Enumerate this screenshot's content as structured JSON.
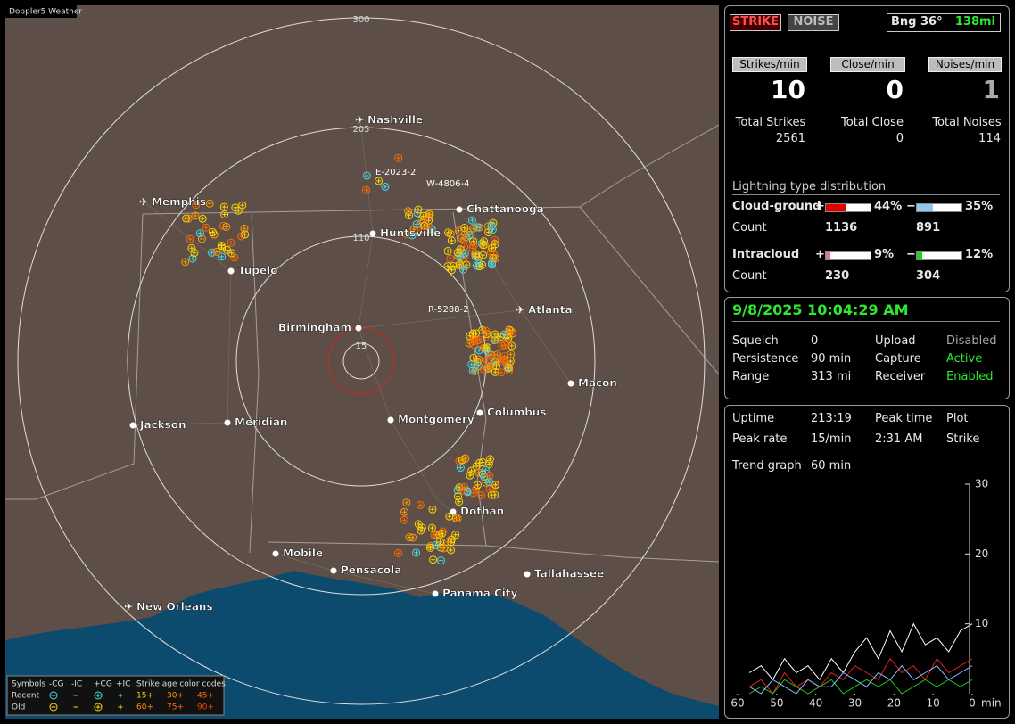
{
  "map": {
    "watermark": "Doppler5 Weather",
    "ring_labels": [
      300,
      205,
      110,
      15
    ],
    "cities": [
      {
        "name": "Nashville",
        "airport": true
      },
      {
        "name": "Memphis",
        "airport": true
      },
      {
        "name": "Tupelo",
        "airport": false
      },
      {
        "name": "Huntsville",
        "airport": false
      },
      {
        "name": "Chattanooga",
        "airport": false
      },
      {
        "name": "Atlanta",
        "airport": true
      },
      {
        "name": "Birmingham",
        "airport": false
      },
      {
        "name": "Macon",
        "airport": false
      },
      {
        "name": "Jackson",
        "airport": false
      },
      {
        "name": "Meridian",
        "airport": false
      },
      {
        "name": "Montgomery",
        "airport": false
      },
      {
        "name": "Columbus",
        "airport": false
      },
      {
        "name": "Dothan",
        "airport": false
      },
      {
        "name": "Mobile",
        "airport": false
      },
      {
        "name": "Pensacola",
        "airport": false
      },
      {
        "name": "Tallahassee",
        "airport": false
      },
      {
        "name": "Panama City",
        "airport": false
      },
      {
        "name": "New Orleans",
        "airport": true
      }
    ],
    "tracks": [
      "E-2023-2",
      "W-4806-4",
      "R-5288-2"
    ],
    "legend": {
      "symbols": "Symbols",
      "types": [
        "-CG",
        "-IC",
        "+CG",
        "+IC"
      ],
      "age_title": "Strike age color codes",
      "rows": [
        {
          "label": "Recent",
          "ages": [
            "15+",
            "30+",
            "45+"
          ]
        },
        {
          "label": "Old",
          "ages": [
            "60+",
            "75+",
            "90+"
          ]
        }
      ]
    }
  },
  "panel": {
    "modes": [
      "STRIKE",
      "NOISE"
    ],
    "bearing": "Bng 36°",
    "distance": "138mi",
    "rates": [
      {
        "label": "Strikes/min",
        "value": 10
      },
      {
        "label": "Close/min",
        "value": 0
      },
      {
        "label": "Noises/min",
        "value": 1
      }
    ],
    "totals": [
      {
        "label": "Total Strikes",
        "value": 2561
      },
      {
        "label": "Total Close",
        "value": 0
      },
      {
        "label": "Total Noises",
        "value": 114
      }
    ],
    "distribution": {
      "title": "Lightning type distribution",
      "count_label": "Count",
      "rows": [
        {
          "name": "Cloud-ground",
          "plus": {
            "sign": "+",
            "percent": {
              "value": 44,
              "label": "44%"
            },
            "count": 1136,
            "color": "#e00000"
          },
          "minus": {
            "sign": "−",
            "percent": {
              "value": 35,
              "label": "35%"
            },
            "count": 891,
            "color": "#8ec8f0"
          }
        },
        {
          "name": "Intracloud",
          "plus": {
            "sign": "+",
            "percent": {
              "value": 9,
              "label": "9%"
            },
            "count": 230,
            "color": "#e070b0"
          },
          "minus": {
            "sign": "−",
            "percent": {
              "value": 12,
              "label": "12%"
            },
            "count": 304,
            "color": "#20d020"
          }
        }
      ]
    },
    "datetime": "9/8/2025 10:04:29 AM",
    "status": [
      [
        "Squelch",
        "0",
        "Upload",
        "Disabled"
      ],
      [
        "Persistence",
        "90 min",
        "Capture",
        "Active"
      ],
      [
        "Range",
        "313 mi",
        "Receiver",
        "Enabled"
      ]
    ],
    "stats": [
      [
        "Uptime",
        "213:19",
        "Peak time",
        "Plot"
      ],
      [
        "Peak rate",
        "15/min",
        "2:31 AM",
        "Strike"
      ]
    ],
    "trend_label": "Trend graph",
    "trend_span": "60 min"
  },
  "trend": {
    "type": "line",
    "x_unit": "min",
    "x": [
      57,
      54,
      51,
      48,
      45,
      42,
      39,
      36,
      33,
      30,
      27,
      24,
      21,
      18,
      15,
      12,
      9,
      6,
      3,
      0
    ],
    "xlim": [
      60,
      0
    ],
    "xticks": [
      60,
      50,
      40,
      30,
      20,
      10,
      0
    ],
    "ylim": [
      0,
      30
    ],
    "yticks": [
      10,
      20,
      30
    ],
    "series": [
      {
        "color": "#ffffff",
        "values": [
          3,
          4,
          2,
          5,
          3,
          4,
          2,
          5,
          3,
          6,
          8,
          5,
          9,
          6,
          10,
          7,
          8,
          6,
          9,
          10
        ]
      },
      {
        "color": "#e02020",
        "values": [
          1,
          2,
          0,
          3,
          1,
          2,
          1,
          3,
          2,
          4,
          3,
          2,
          5,
          3,
          4,
          2,
          5,
          3,
          4,
          5
        ]
      },
      {
        "color": "#20c020",
        "values": [
          0,
          1,
          0,
          2,
          1,
          0,
          1,
          2,
          0,
          1,
          2,
          1,
          2,
          0,
          1,
          2,
          1,
          2,
          1,
          2
        ]
      },
      {
        "color": "#8ab8ff",
        "values": [
          1,
          0,
          2,
          1,
          0,
          2,
          1,
          1,
          3,
          2,
          1,
          3,
          2,
          4,
          2,
          3,
          4,
          2,
          3,
          4
        ]
      }
    ]
  }
}
